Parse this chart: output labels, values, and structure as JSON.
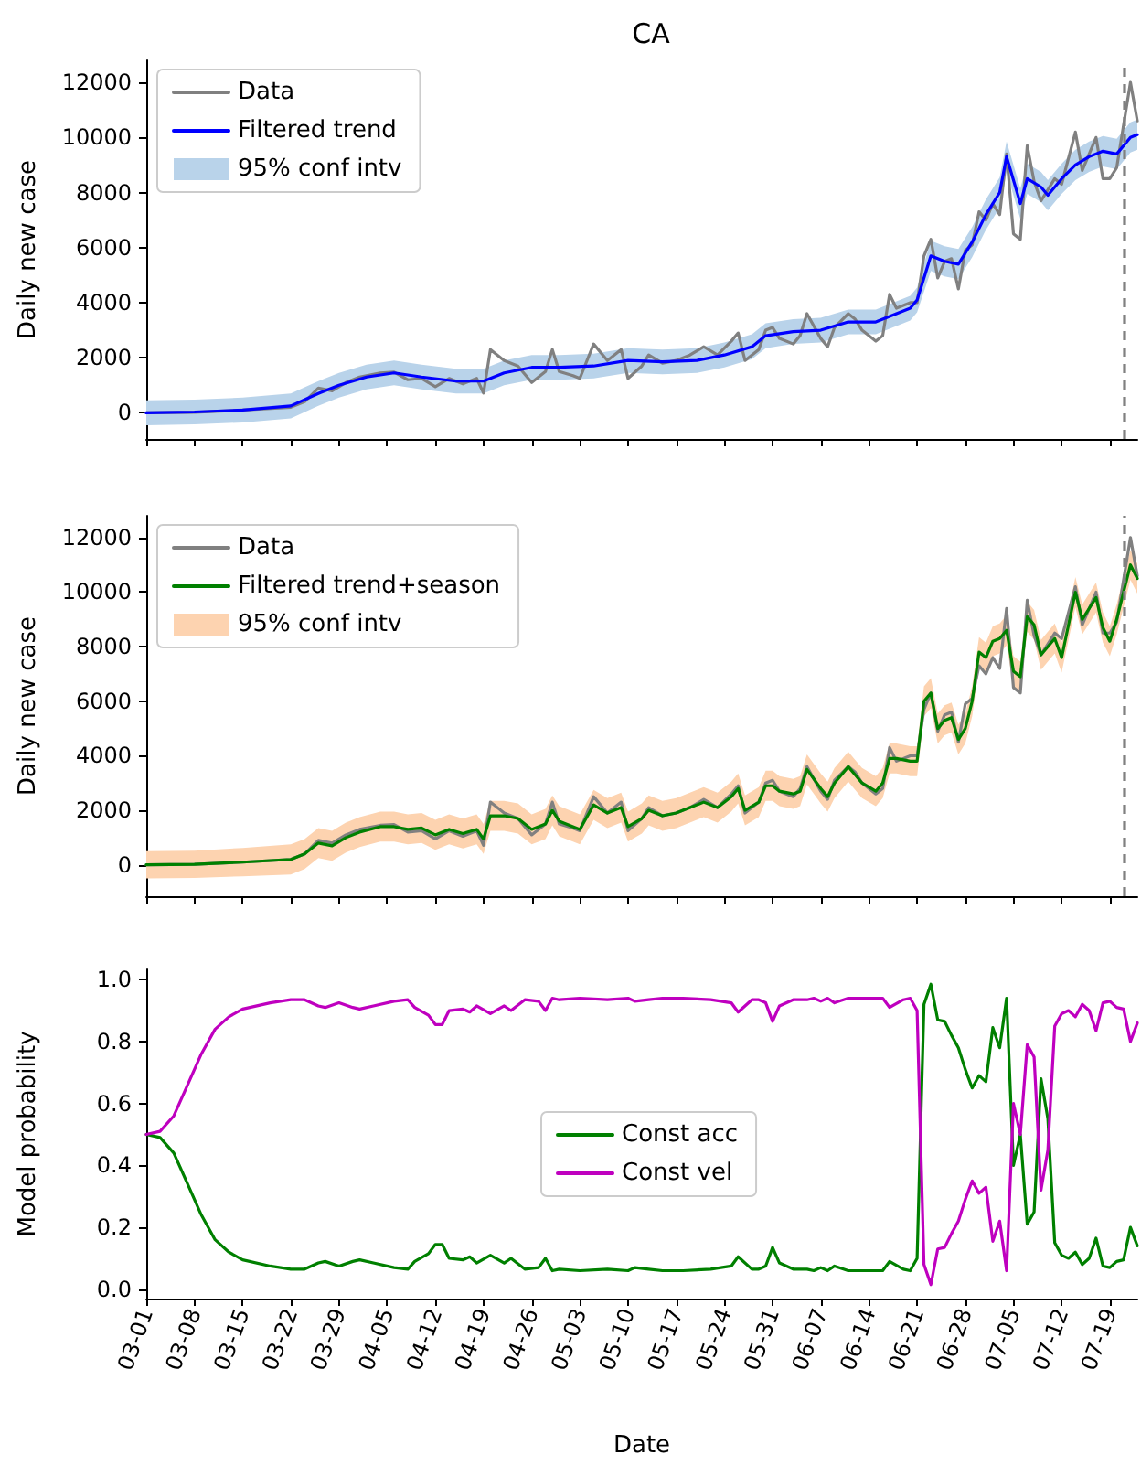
{
  "chart_data": [
    {
      "type": "line",
      "title": "CA",
      "ylabel": "Daily new case",
      "xlim": [
        "--03-01",
        "--07-23"
      ],
      "xticks": [
        {
          "value": "--03-01",
          "label": "03-01"
        },
        {
          "value": "--03-08",
          "label": "03-08"
        },
        {
          "value": "--03-15",
          "label": "03-15"
        },
        {
          "value": "--03-22",
          "label": "03-22"
        },
        {
          "value": "--03-29",
          "label": "03-29"
        },
        {
          "value": "--04-05",
          "label": "04-05"
        },
        {
          "value": "--04-12",
          "label": "04-12"
        },
        {
          "value": "--04-19",
          "label": "04-19"
        },
        {
          "value": "--04-26",
          "label": "04-26"
        },
        {
          "value": "--05-03",
          "label": "05-03"
        },
        {
          "value": "--05-10",
          "label": "05-10"
        },
        {
          "value": "--05-17",
          "label": "05-17"
        },
        {
          "value": "--05-24",
          "label": "05-24"
        },
        {
          "value": "--05-31",
          "label": "05-31"
        },
        {
          "value": "--06-07",
          "label": "06-07"
        },
        {
          "value": "--06-14",
          "label": "06-14"
        },
        {
          "value": "--06-21",
          "label": "06-21"
        },
        {
          "value": "--06-28",
          "label": "06-28"
        },
        {
          "value": "--07-05",
          "label": "07-05"
        },
        {
          "value": "--07-12",
          "label": "07-12"
        },
        {
          "value": "--07-19",
          "label": "07-19"
        }
      ],
      "ylim": [
        -950,
        12800
      ],
      "yticks": [
        0,
        2000,
        4000,
        6000,
        8000,
        10000,
        12000
      ],
      "tick_labels": "y",
      "legend": "top left",
      "marker": "none",
      "ref_lines": [
        {
          "axis": "x",
          "value": "--07-21",
          "color": "#808080",
          "line_style": "dashed"
        }
      ],
      "series": [
        {
          "name": "Data",
          "color": "#808080",
          "x": [
            "--03-01",
            "--03-08",
            "--03-15",
            "--03-22",
            "--03-24",
            "--03-26",
            "--03-28",
            "--03-30",
            "--04-01",
            "--04-04",
            "--04-06",
            "--04-08",
            "--04-10",
            "--04-12",
            "--04-14",
            "--04-16",
            "--04-18",
            "--04-19",
            "--04-20",
            "--04-22",
            "--04-24",
            "--04-26",
            "--04-28",
            "--04-29",
            "--04-30",
            "--05-02",
            "--05-03",
            "--05-05",
            "--05-07",
            "--05-09",
            "--05-10",
            "--05-12",
            "--05-13",
            "--05-15",
            "--05-17",
            "--05-19",
            "--05-21",
            "--05-23",
            "--05-25",
            "--05-26",
            "--05-27",
            "--05-29",
            "--05-30",
            "--05-31",
            "--06-01",
            "--06-03",
            "--06-04",
            "--06-05",
            "--06-07",
            "--06-08",
            "--06-09",
            "--06-11",
            "--06-12",
            "--06-13",
            "--06-15",
            "--06-16",
            "--06-17",
            "--06-18",
            "--06-20",
            "--06-21",
            "--06-22",
            "--06-23",
            "--06-24",
            "--06-25",
            "--06-26",
            "--06-27",
            "--06-28",
            "--06-29",
            "--06-30",
            "--07-01",
            "--07-02",
            "--07-03",
            "--07-04",
            "--07-05",
            "--07-06",
            "--07-07",
            "--07-08",
            "--07-09",
            "--07-11",
            "--07-12",
            "--07-14",
            "--07-15",
            "--07-17",
            "--07-18",
            "--07-19",
            "--07-20",
            "--07-22",
            "--07-23"
          ],
          "values": [
            0,
            20,
            100,
            200,
            400,
            900,
            800,
            1100,
            1300,
            1450,
            1480,
            1200,
            1250,
            950,
            1250,
            1050,
            1250,
            720,
            2300,
            1900,
            1700,
            1100,
            1500,
            2300,
            1500,
            1350,
            1250,
            2500,
            1900,
            2300,
            1250,
            1700,
            2100,
            1800,
            1900,
            2100,
            2400,
            2100,
            2600,
            2900,
            1900,
            2300,
            3000,
            3100,
            2700,
            2500,
            2800,
            3600,
            2700,
            2400,
            3100,
            3600,
            3400,
            3000,
            2600,
            2800,
            4300,
            3800,
            4000,
            4000,
            5700,
            6300,
            4900,
            5500,
            5600,
            4500,
            5900,
            6100,
            7300,
            7000,
            7600,
            7200,
            9400,
            6500,
            6300,
            9700,
            8400,
            7700,
            8500,
            8300,
            10200,
            8800,
            10000,
            8500,
            8500,
            8900,
            12000,
            10600
          ]
        },
        {
          "name": "Filtered trend",
          "color": "#0000ff",
          "x": [
            "--03-01",
            "--03-08",
            "--03-15",
            "--03-22",
            "--03-26",
            "--03-29",
            "--04-02",
            "--04-06",
            "--04-10",
            "--04-15",
            "--04-19",
            "--04-22",
            "--04-26",
            "--04-30",
            "--05-05",
            "--05-10",
            "--05-15",
            "--05-20",
            "--05-24",
            "--05-28",
            "--05-30",
            "--06-03",
            "--06-07",
            "--06-11",
            "--06-15",
            "--06-18",
            "--06-20",
            "--06-21",
            "--06-23",
            "--06-25",
            "--06-27",
            "--06-29",
            "--07-01",
            "--07-03",
            "--07-04",
            "--07-06",
            "--07-07",
            "--07-09",
            "--07-10",
            "--07-12",
            "--07-14",
            "--07-16",
            "--07-18",
            "--07-20",
            "--07-22",
            "--07-23"
          ],
          "values": [
            0,
            30,
            100,
            250,
            700,
            1000,
            1300,
            1450,
            1300,
            1150,
            1150,
            1450,
            1650,
            1650,
            1700,
            1900,
            1850,
            1900,
            2100,
            2400,
            2800,
            2950,
            3000,
            3300,
            3300,
            3600,
            3800,
            4100,
            5700,
            5500,
            5400,
            6200,
            7200,
            8000,
            9300,
            7600,
            8500,
            8200,
            7900,
            8500,
            9000,
            9300,
            9500,
            9400,
            10000,
            10100
          ],
          "lower": [
            -450,
            -420,
            -350,
            -200,
            250,
            550,
            850,
            1000,
            850,
            700,
            700,
            1000,
            1200,
            1200,
            1250,
            1450,
            1400,
            1450,
            1650,
            1950,
            2350,
            2500,
            2550,
            2850,
            2850,
            3150,
            3350,
            3650,
            5150,
            4950,
            4850,
            5650,
            6650,
            7450,
            8750,
            7050,
            7950,
            7650,
            7350,
            7950,
            8450,
            8750,
            8950,
            8850,
            9450,
            9550
          ],
          "upper": [
            450,
            480,
            550,
            700,
            1150,
            1450,
            1750,
            1900,
            1750,
            1600,
            1600,
            1900,
            2100,
            2100,
            2150,
            2350,
            2300,
            2350,
            2550,
            2850,
            3250,
            3400,
            3450,
            3750,
            3750,
            4050,
            4250,
            4550,
            6250,
            6050,
            5950,
            6750,
            7750,
            8550,
            9850,
            8150,
            9050,
            8750,
            8450,
            9050,
            9550,
            9850,
            10050,
            9950,
            10550,
            10650
          ]
        },
        {
          "name": "95% conf intv",
          "type": "area",
          "color": "#b9d3ea"
        }
      ]
    },
    {
      "type": "line",
      "ylabel": "Daily new case",
      "xlim": [
        "--03-01",
        "--07-23"
      ],
      "xticks": [
        {
          "value": "--03-01",
          "label": "03-01"
        },
        {
          "value": "--03-08",
          "label": "03-08"
        },
        {
          "value": "--03-15",
          "label": "03-15"
        },
        {
          "value": "--03-22",
          "label": "03-22"
        },
        {
          "value": "--03-29",
          "label": "03-29"
        },
        {
          "value": "--04-05",
          "label": "04-05"
        },
        {
          "value": "--04-12",
          "label": "04-12"
        },
        {
          "value": "--04-19",
          "label": "04-19"
        },
        {
          "value": "--04-26",
          "label": "04-26"
        },
        {
          "value": "--05-03",
          "label": "05-03"
        },
        {
          "value": "--05-10",
          "label": "05-10"
        },
        {
          "value": "--05-17",
          "label": "05-17"
        },
        {
          "value": "--05-24",
          "label": "05-24"
        },
        {
          "value": "--05-31",
          "label": "05-31"
        },
        {
          "value": "--06-07",
          "label": "06-07"
        },
        {
          "value": "--06-14",
          "label": "06-14"
        },
        {
          "value": "--06-21",
          "label": "06-21"
        },
        {
          "value": "--06-28",
          "label": "06-28"
        },
        {
          "value": "--07-05",
          "label": "07-05"
        },
        {
          "value": "--07-12",
          "label": "07-12"
        },
        {
          "value": "--07-19",
          "label": "07-19"
        }
      ],
      "ylim": [
        -1150,
        12800
      ],
      "yticks": [
        0,
        2000,
        4000,
        6000,
        8000,
        10000,
        12000
      ],
      "tick_labels": "y",
      "legend": "top left",
      "marker": "none",
      "ref_lines": [
        {
          "axis": "x",
          "value": "--07-21",
          "color": "#808080",
          "line_style": "dashed"
        }
      ],
      "series": [
        {
          "name": "Data",
          "color": "#808080",
          "x": [
            "--03-01",
            "--03-08",
            "--03-15",
            "--03-22",
            "--03-24",
            "--03-26",
            "--03-28",
            "--03-30",
            "--04-01",
            "--04-04",
            "--04-06",
            "--04-08",
            "--04-10",
            "--04-12",
            "--04-14",
            "--04-16",
            "--04-18",
            "--04-19",
            "--04-20",
            "--04-22",
            "--04-24",
            "--04-26",
            "--04-28",
            "--04-29",
            "--04-30",
            "--05-02",
            "--05-03",
            "--05-05",
            "--05-07",
            "--05-09",
            "--05-10",
            "--05-12",
            "--05-13",
            "--05-15",
            "--05-17",
            "--05-19",
            "--05-21",
            "--05-23",
            "--05-25",
            "--05-26",
            "--05-27",
            "--05-29",
            "--05-30",
            "--05-31",
            "--06-01",
            "--06-03",
            "--06-04",
            "--06-05",
            "--06-07",
            "--06-08",
            "--06-09",
            "--06-11",
            "--06-12",
            "--06-13",
            "--06-15",
            "--06-16",
            "--06-17",
            "--06-18",
            "--06-20",
            "--06-21",
            "--06-22",
            "--06-23",
            "--06-24",
            "--06-25",
            "--06-26",
            "--06-27",
            "--06-28",
            "--06-29",
            "--06-30",
            "--07-01",
            "--07-02",
            "--07-03",
            "--07-04",
            "--07-05",
            "--07-06",
            "--07-07",
            "--07-08",
            "--07-09",
            "--07-11",
            "--07-12",
            "--07-14",
            "--07-15",
            "--07-17",
            "--07-18",
            "--07-19",
            "--07-20",
            "--07-22",
            "--07-23"
          ],
          "values": [
            0,
            20,
            100,
            200,
            400,
            900,
            800,
            1100,
            1300,
            1450,
            1480,
            1200,
            1250,
            950,
            1250,
            1050,
            1250,
            720,
            2300,
            1900,
            1700,
            1100,
            1500,
            2300,
            1500,
            1350,
            1250,
            2500,
            1900,
            2300,
            1250,
            1700,
            2100,
            1800,
            1900,
            2100,
            2400,
            2100,
            2600,
            2900,
            1900,
            2300,
            3000,
            3100,
            2700,
            2500,
            2800,
            3600,
            2700,
            2400,
            3100,
            3600,
            3400,
            3000,
            2600,
            2800,
            4300,
            3800,
            4000,
            4000,
            5700,
            6300,
            4900,
            5500,
            5600,
            4500,
            5900,
            6100,
            7300,
            7000,
            7600,
            7200,
            9400,
            6500,
            6300,
            9700,
            8400,
            7700,
            8500,
            8300,
            10200,
            8800,
            10000,
            8500,
            8500,
            8900,
            12000,
            10600
          ]
        },
        {
          "name": "Filtered trend+season",
          "color": "#008000",
          "x": [
            "--03-01",
            "--03-08",
            "--03-15",
            "--03-22",
            "--03-24",
            "--03-26",
            "--03-28",
            "--03-30",
            "--04-01",
            "--04-04",
            "--04-06",
            "--04-08",
            "--04-10",
            "--04-12",
            "--04-14",
            "--04-16",
            "--04-18",
            "--04-19",
            "--04-20",
            "--04-22",
            "--04-24",
            "--04-26",
            "--04-28",
            "--04-29",
            "--04-30",
            "--05-02",
            "--05-03",
            "--05-05",
            "--05-07",
            "--05-09",
            "--05-10",
            "--05-12",
            "--05-13",
            "--05-15",
            "--05-17",
            "--05-19",
            "--05-21",
            "--05-23",
            "--05-25",
            "--05-26",
            "--05-27",
            "--05-29",
            "--05-30",
            "--05-31",
            "--06-01",
            "--06-03",
            "--06-04",
            "--06-05",
            "--06-07",
            "--06-08",
            "--06-09",
            "--06-11",
            "--06-12",
            "--06-13",
            "--06-15",
            "--06-16",
            "--06-17",
            "--06-18",
            "--06-20",
            "--06-21",
            "--06-22",
            "--06-23",
            "--06-24",
            "--06-25",
            "--06-26",
            "--06-27",
            "--06-28",
            "--06-29",
            "--06-30",
            "--07-01",
            "--07-02",
            "--07-03",
            "--07-04",
            "--07-05",
            "--07-06",
            "--07-07",
            "--07-08",
            "--07-09",
            "--07-11",
            "--07-12",
            "--07-14",
            "--07-15",
            "--07-17",
            "--07-18",
            "--07-19",
            "--07-20",
            "--07-22",
            "--07-23"
          ],
          "values": [
            0,
            20,
            100,
            200,
            400,
            800,
            700,
            1000,
            1200,
            1400,
            1400,
            1300,
            1350,
            1100,
            1300,
            1150,
            1300,
            950,
            1800,
            1800,
            1700,
            1300,
            1500,
            2000,
            1600,
            1400,
            1300,
            2200,
            1900,
            2100,
            1400,
            1700,
            2000,
            1800,
            1900,
            2100,
            2300,
            2100,
            2500,
            2800,
            2000,
            2300,
            2900,
            2900,
            2700,
            2600,
            2700,
            3500,
            2800,
            2500,
            3000,
            3600,
            3300,
            3000,
            2700,
            3000,
            3900,
            3900,
            3800,
            3800,
            6000,
            6300,
            5000,
            5300,
            5400,
            4600,
            5000,
            6000,
            7800,
            7600,
            8200,
            8300,
            8600,
            7100,
            6900,
            9100,
            8800,
            7700,
            8300,
            7600,
            10000,
            9000,
            9800,
            8700,
            8200,
            9000,
            11000,
            10500
          ],
          "lower": [
            -500,
            -480,
            -420,
            -350,
            -150,
            250,
            150,
            450,
            650,
            850,
            850,
            750,
            800,
            550,
            750,
            600,
            750,
            400,
            1250,
            1250,
            1150,
            750,
            950,
            1450,
            1050,
            850,
            750,
            1650,
            1350,
            1550,
            850,
            1150,
            1450,
            1250,
            1350,
            1550,
            1750,
            1550,
            1950,
            2250,
            1450,
            1750,
            2350,
            2350,
            2150,
            2050,
            2150,
            2950,
            2250,
            1950,
            2450,
            3050,
            2750,
            2450,
            2150,
            2450,
            3350,
            3350,
            3250,
            3250,
            5450,
            5750,
            4450,
            4750,
            4850,
            4050,
            4450,
            5450,
            7250,
            7050,
            7650,
            7750,
            8050,
            6550,
            6350,
            8550,
            8250,
            7150,
            7750,
            7050,
            9450,
            8450,
            9250,
            8150,
            7650,
            8450,
            10450,
            9950
          ],
          "upper": [
            500,
            520,
            620,
            750,
            950,
            1350,
            1250,
            1550,
            1750,
            1950,
            1950,
            1850,
            1900,
            1650,
            1850,
            1700,
            1850,
            1500,
            2350,
            2350,
            2250,
            1850,
            2050,
            2550,
            2150,
            1950,
            1850,
            2750,
            2450,
            2650,
            1950,
            2250,
            2550,
            2350,
            2450,
            2650,
            2850,
            2650,
            3050,
            3350,
            2550,
            2850,
            3450,
            3450,
            3250,
            3150,
            3250,
            4050,
            3350,
            3050,
            3550,
            4150,
            3850,
            3550,
            3250,
            3550,
            4450,
            4450,
            4350,
            4350,
            6550,
            6850,
            5550,
            5850,
            5950,
            5150,
            5550,
            6550,
            8350,
            8150,
            8750,
            8850,
            9150,
            7650,
            7450,
            9650,
            9350,
            8250,
            8850,
            8150,
            10550,
            9550,
            10350,
            9250,
            8750,
            9550,
            11550,
            11050
          ]
        },
        {
          "name": "95% conf intv",
          "type": "area",
          "color": "#fdd3b0"
        }
      ]
    },
    {
      "type": "line",
      "xlabel": "Date",
      "ylabel": "Model probability",
      "xlim": [
        "--03-01",
        "--07-23"
      ],
      "xticks": [
        {
          "value": "--03-01",
          "label": "03-01"
        },
        {
          "value": "--03-08",
          "label": "03-08"
        },
        {
          "value": "--03-15",
          "label": "03-15"
        },
        {
          "value": "--03-22",
          "label": "03-22"
        },
        {
          "value": "--03-29",
          "label": "03-29"
        },
        {
          "value": "--04-05",
          "label": "04-05"
        },
        {
          "value": "--04-12",
          "label": "04-12"
        },
        {
          "value": "--04-19",
          "label": "04-19"
        },
        {
          "value": "--04-26",
          "label": "04-26"
        },
        {
          "value": "--05-03",
          "label": "05-03"
        },
        {
          "value": "--05-10",
          "label": "05-10"
        },
        {
          "value": "--05-17",
          "label": "05-17"
        },
        {
          "value": "--05-24",
          "label": "05-24"
        },
        {
          "value": "--05-31",
          "label": "05-31"
        },
        {
          "value": "--06-07",
          "label": "06-07"
        },
        {
          "value": "--06-14",
          "label": "06-14"
        },
        {
          "value": "--06-21",
          "label": "06-21"
        },
        {
          "value": "--06-28",
          "label": "06-28"
        },
        {
          "value": "--07-05",
          "label": "07-05"
        },
        {
          "value": "--07-12",
          "label": "07-12"
        },
        {
          "value": "--07-19",
          "label": "07-19"
        }
      ],
      "ylim": [
        -0.03,
        1.033
      ],
      "yticks": [
        {
          "value": 0,
          "label": "0.0"
        },
        {
          "value": 0.2,
          "label": "0.2"
        },
        {
          "value": 0.4,
          "label": "0.4"
        },
        {
          "value": 0.6,
          "label": "0.6"
        },
        {
          "value": 0.8,
          "label": "0.8"
        },
        {
          "value": 1,
          "label": "1.0"
        }
      ],
      "legend": "center",
      "marker": "none",
      "series": [
        {
          "name": "Const acc",
          "color": "#008000",
          "x": [
            "--03-01",
            "--03-03",
            "--03-05",
            "--03-07",
            "--03-09",
            "--03-11",
            "--03-13",
            "--03-15",
            "--03-19",
            "--03-22",
            "--03-24",
            "--03-26",
            "--03-27",
            "--03-29",
            "--03-31",
            "--04-01",
            "--04-03",
            "--04-06",
            "--04-08",
            "--04-09",
            "--04-11",
            "--04-12",
            "--04-13",
            "--04-14",
            "--04-16",
            "--04-17",
            "--04-18",
            "--04-20",
            "--04-22",
            "--04-23",
            "--04-25",
            "--04-27",
            "--04-28",
            "--04-29",
            "--04-30",
            "--05-03",
            "--05-07",
            "--05-10",
            "--05-11",
            "--05-13",
            "--05-15",
            "--05-18",
            "--05-22",
            "--05-25",
            "--05-26",
            "--05-28",
            "--05-29",
            "--05-30",
            "--05-31",
            "--06-01",
            "--06-03",
            "--06-05",
            "--06-06",
            "--06-07",
            "--06-08",
            "--06-09",
            "--06-11",
            "--06-13",
            "--06-16",
            "--06-17",
            "--06-19",
            "--06-20",
            "--06-21",
            "--06-22",
            "--06-23",
            "--06-24",
            "--06-25",
            "--06-26",
            "--06-27",
            "--06-28",
            "--06-29",
            "--06-30",
            "--07-01",
            "--07-02",
            "--07-03",
            "--07-04",
            "--07-05",
            "--07-06",
            "--07-07",
            "--07-08",
            "--07-09",
            "--07-10",
            "--07-11",
            "--07-12",
            "--07-13",
            "--07-14",
            "--07-15",
            "--07-16",
            "--07-17",
            "--07-18",
            "--07-19",
            "--07-20",
            "--07-21",
            "--07-22",
            "--07-23"
          ],
          "values": [
            0.5,
            0.49,
            0.44,
            0.34,
            0.24,
            0.16,
            0.12,
            0.095,
            0.075,
            0.065,
            0.065,
            0.085,
            0.09,
            0.075,
            0.09,
            0.095,
            0.085,
            0.07,
            0.065,
            0.09,
            0.115,
            0.145,
            0.145,
            0.1,
            0.095,
            0.105,
            0.085,
            0.11,
            0.085,
            0.1,
            0.065,
            0.07,
            0.1,
            0.06,
            0.065,
            0.06,
            0.065,
            0.06,
            0.07,
            0.065,
            0.06,
            0.06,
            0.065,
            0.075,
            0.105,
            0.065,
            0.065,
            0.075,
            0.135,
            0.085,
            0.065,
            0.065,
            0.06,
            0.07,
            0.06,
            0.075,
            0.06,
            0.06,
            0.06,
            0.09,
            0.065,
            0.06,
            0.1,
            0.92,
            0.985,
            0.87,
            0.865,
            0.82,
            0.78,
            0.71,
            0.65,
            0.69,
            0.67,
            0.845,
            0.78,
            0.94,
            0.4,
            0.5,
            0.21,
            0.25,
            0.68,
            0.55,
            0.15,
            0.11,
            0.1,
            0.12,
            0.08,
            0.1,
            0.165,
            0.075,
            0.07,
            0.09,
            0.095,
            0.2,
            0.14
          ]
        },
        {
          "name": "Const vel",
          "color": "#bf00bf",
          "x": [
            "--03-01",
            "--03-03",
            "--03-05",
            "--03-07",
            "--03-09",
            "--03-11",
            "--03-13",
            "--03-15",
            "--03-19",
            "--03-22",
            "--03-24",
            "--03-26",
            "--03-27",
            "--03-29",
            "--03-31",
            "--04-01",
            "--04-03",
            "--04-06",
            "--04-08",
            "--04-09",
            "--04-11",
            "--04-12",
            "--04-13",
            "--04-14",
            "--04-16",
            "--04-17",
            "--04-18",
            "--04-20",
            "--04-22",
            "--04-23",
            "--04-25",
            "--04-27",
            "--04-28",
            "--04-29",
            "--04-30",
            "--05-03",
            "--05-07",
            "--05-10",
            "--05-11",
            "--05-13",
            "--05-15",
            "--05-18",
            "--05-22",
            "--05-25",
            "--05-26",
            "--05-28",
            "--05-29",
            "--05-30",
            "--05-31",
            "--06-01",
            "--06-03",
            "--06-05",
            "--06-06",
            "--06-07",
            "--06-08",
            "--06-09",
            "--06-11",
            "--06-13",
            "--06-16",
            "--06-17",
            "--06-19",
            "--06-20",
            "--06-21",
            "--06-22",
            "--06-23",
            "--06-24",
            "--06-25",
            "--06-26",
            "--06-27",
            "--06-28",
            "--06-29",
            "--06-30",
            "--07-01",
            "--07-02",
            "--07-03",
            "--07-04",
            "--07-05",
            "--07-06",
            "--07-07",
            "--07-08",
            "--07-09",
            "--07-10",
            "--07-11",
            "--07-12",
            "--07-13",
            "--07-14",
            "--07-15",
            "--07-16",
            "--07-17",
            "--07-18",
            "--07-19",
            "--07-20",
            "--07-21",
            "--07-22",
            "--07-23"
          ],
          "values": [
            0.5,
            0.51,
            0.56,
            0.66,
            0.76,
            0.84,
            0.88,
            0.905,
            0.925,
            0.935,
            0.935,
            0.915,
            0.91,
            0.925,
            0.91,
            0.905,
            0.915,
            0.93,
            0.935,
            0.91,
            0.885,
            0.855,
            0.855,
            0.9,
            0.905,
            0.895,
            0.915,
            0.89,
            0.915,
            0.9,
            0.935,
            0.93,
            0.9,
            0.94,
            0.935,
            0.94,
            0.935,
            0.94,
            0.93,
            0.935,
            0.94,
            0.94,
            0.935,
            0.925,
            0.895,
            0.935,
            0.935,
            0.925,
            0.865,
            0.915,
            0.935,
            0.935,
            0.94,
            0.93,
            0.94,
            0.925,
            0.94,
            0.94,
            0.94,
            0.91,
            0.935,
            0.94,
            0.9,
            0.08,
            0.015,
            0.13,
            0.135,
            0.18,
            0.22,
            0.29,
            0.35,
            0.31,
            0.33,
            0.155,
            0.22,
            0.06,
            0.6,
            0.5,
            0.79,
            0.75,
            0.32,
            0.45,
            0.85,
            0.89,
            0.9,
            0.88,
            0.92,
            0.9,
            0.835,
            0.925,
            0.93,
            0.91,
            0.905,
            0.8,
            0.86
          ]
        }
      ]
    }
  ]
}
